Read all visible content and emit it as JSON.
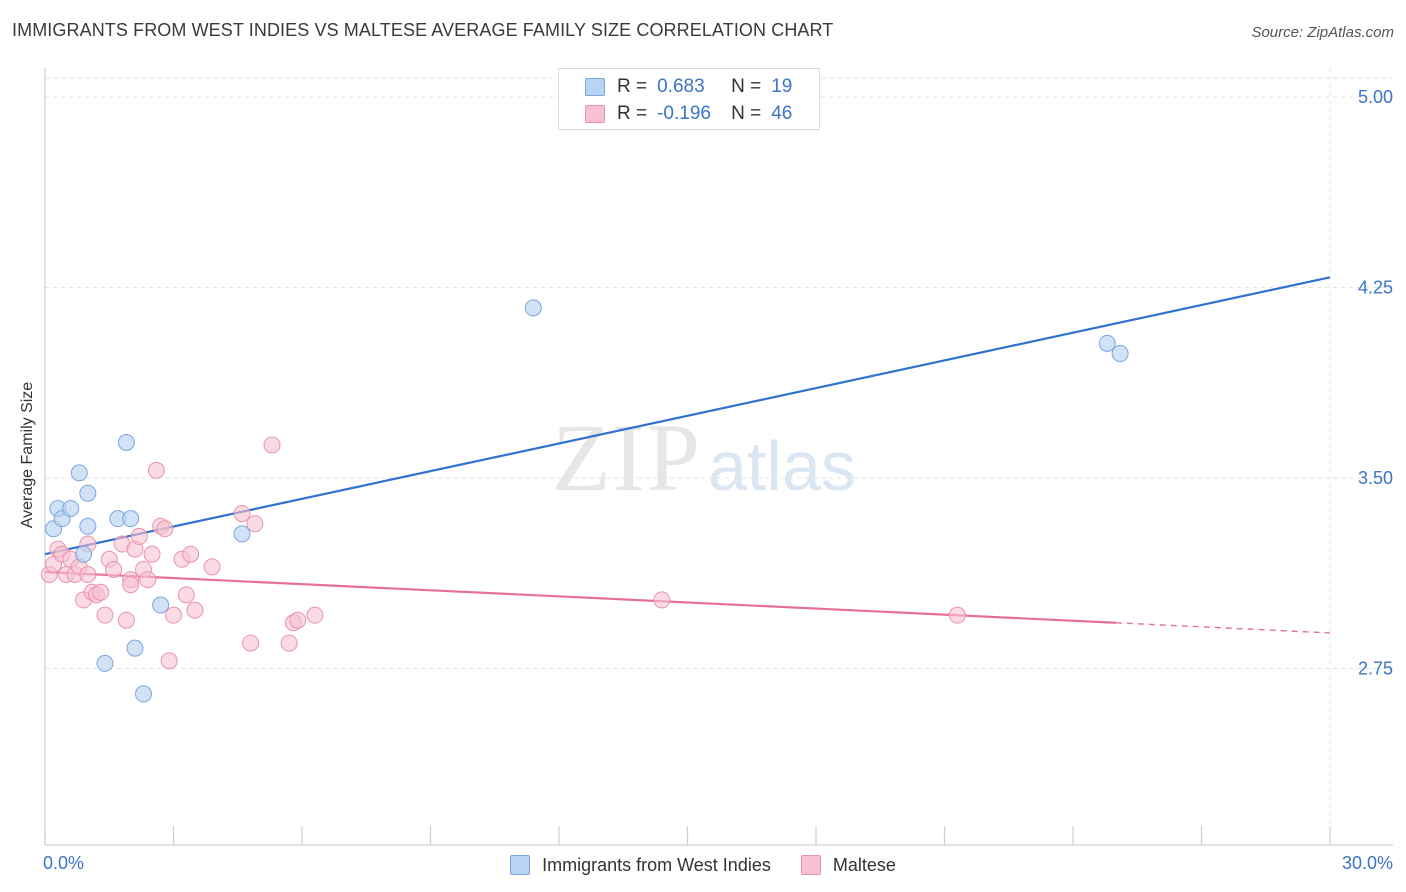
{
  "title": "IMMIGRANTS FROM WEST INDIES VS MALTESE AVERAGE FAMILY SIZE CORRELATION CHART",
  "source": "Source: ZipAtlas.com",
  "watermark": {
    "zip": "ZIP",
    "atlas": "atlas"
  },
  "legend_stats": [
    {
      "r_label": "R =",
      "r_value": "0.683",
      "n_label": "N =",
      "n_value": "19"
    },
    {
      "r_label": "R =",
      "r_value": "-0.196",
      "n_label": "N =",
      "n_value": "46"
    }
  ],
  "colors": {
    "blue_fill": "#b9d3f2",
    "blue_stroke": "#7aa6de",
    "blue_line": "#2f72d0",
    "pink_fill": "#f7c1d1",
    "pink_stroke": "#ea93ae",
    "pink_line": "#e5709a",
    "axis_label": "#3b74c9",
    "grid": "#e3e3e3"
  },
  "chart_data": {
    "type": "scatter",
    "title": "IMMIGRANTS FROM WEST INDIES VS MALTESE AVERAGE FAMILY SIZE CORRELATION CHART",
    "xlabel": "",
    "ylabel": "Average Family Size",
    "xlim": [
      0,
      30
    ],
    "ylim": [
      2.1,
      5.15
    ],
    "x_tick_labels": [
      "0.0%",
      "30.0%"
    ],
    "y_ticks": [
      2.75,
      3.5,
      4.25,
      5.0
    ],
    "y_tick_labels": [
      "2.75",
      "3.50",
      "4.25",
      "5.00"
    ],
    "grid": true,
    "series": [
      {
        "name": "Immigrants from West Indies",
        "x": [
          0.2,
          0.3,
          0.4,
          0.6,
          0.8,
          0.9,
          1.0,
          1.0,
          1.4,
          1.7,
          1.9,
          2.0,
          2.1,
          2.3,
          2.7,
          4.6,
          11.4,
          24.8,
          25.1
        ],
        "y": [
          3.3,
          3.38,
          3.34,
          3.38,
          3.52,
          3.2,
          3.31,
          3.44,
          2.77,
          3.34,
          3.64,
          3.34,
          2.83,
          2.65,
          3.0,
          3.28,
          4.17,
          4.03,
          3.99
        ],
        "trend": {
          "x": [
            0.0,
            30.0
          ],
          "y": [
            3.2,
            4.29
          ]
        }
      },
      {
        "name": "Maltese",
        "x": [
          0.1,
          0.2,
          0.3,
          0.4,
          0.5,
          0.6,
          0.7,
          0.8,
          0.9,
          1.0,
          1.0,
          1.1,
          1.2,
          1.3,
          1.4,
          1.5,
          1.6,
          1.8,
          1.9,
          2.0,
          2.0,
          2.1,
          2.2,
          2.3,
          2.4,
          2.5,
          2.6,
          2.7,
          2.8,
          2.9,
          3.0,
          3.2,
          3.3,
          3.4,
          3.5,
          3.9,
          4.6,
          4.8,
          4.9,
          5.3,
          5.8,
          5.7,
          5.9,
          6.3,
          14.4,
          21.3
        ],
        "y": [
          3.12,
          3.16,
          3.22,
          3.2,
          3.12,
          3.18,
          3.12,
          3.15,
          3.02,
          3.24,
          3.12,
          3.05,
          3.04,
          3.05,
          2.96,
          3.18,
          3.14,
          3.24,
          2.94,
          3.1,
          3.08,
          3.22,
          3.27,
          3.14,
          3.1,
          3.2,
          3.53,
          3.31,
          3.3,
          2.78,
          2.96,
          3.18,
          3.04,
          3.2,
          2.98,
          3.15,
          3.36,
          2.85,
          3.32,
          3.63,
          2.93,
          2.85,
          2.94,
          2.96,
          3.02,
          2.96
        ],
        "trend": {
          "x": [
            0.0,
            25.0
          ],
          "y": [
            3.13,
            2.93
          ]
        },
        "trend_dashed": {
          "x": [
            25.0,
            30.0
          ],
          "y": [
            2.93,
            2.89
          ]
        }
      }
    ]
  }
}
